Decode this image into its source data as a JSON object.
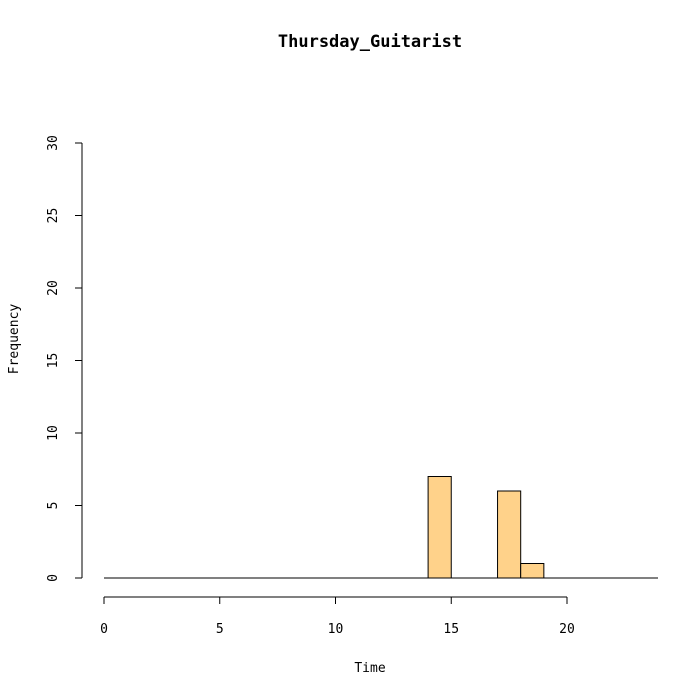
{
  "chart_data": {
    "type": "bar",
    "title": "Thursday_Guitarist",
    "xlabel": "Time",
    "ylabel": "Frequency",
    "xlim": [
      0,
      24
    ],
    "ylim": [
      0,
      30
    ],
    "xticks": [
      0,
      5,
      10,
      15,
      20
    ],
    "yticks": [
      0,
      5,
      10,
      15,
      20,
      25,
      30
    ],
    "bin_width": 1,
    "bins": [
      {
        "start": 14,
        "end": 15,
        "count": 7
      },
      {
        "start": 17,
        "end": 18,
        "count": 6
      },
      {
        "start": 18,
        "end": 19,
        "count": 1
      }
    ],
    "bar_color": "#FFD28A",
    "grid": false
  }
}
